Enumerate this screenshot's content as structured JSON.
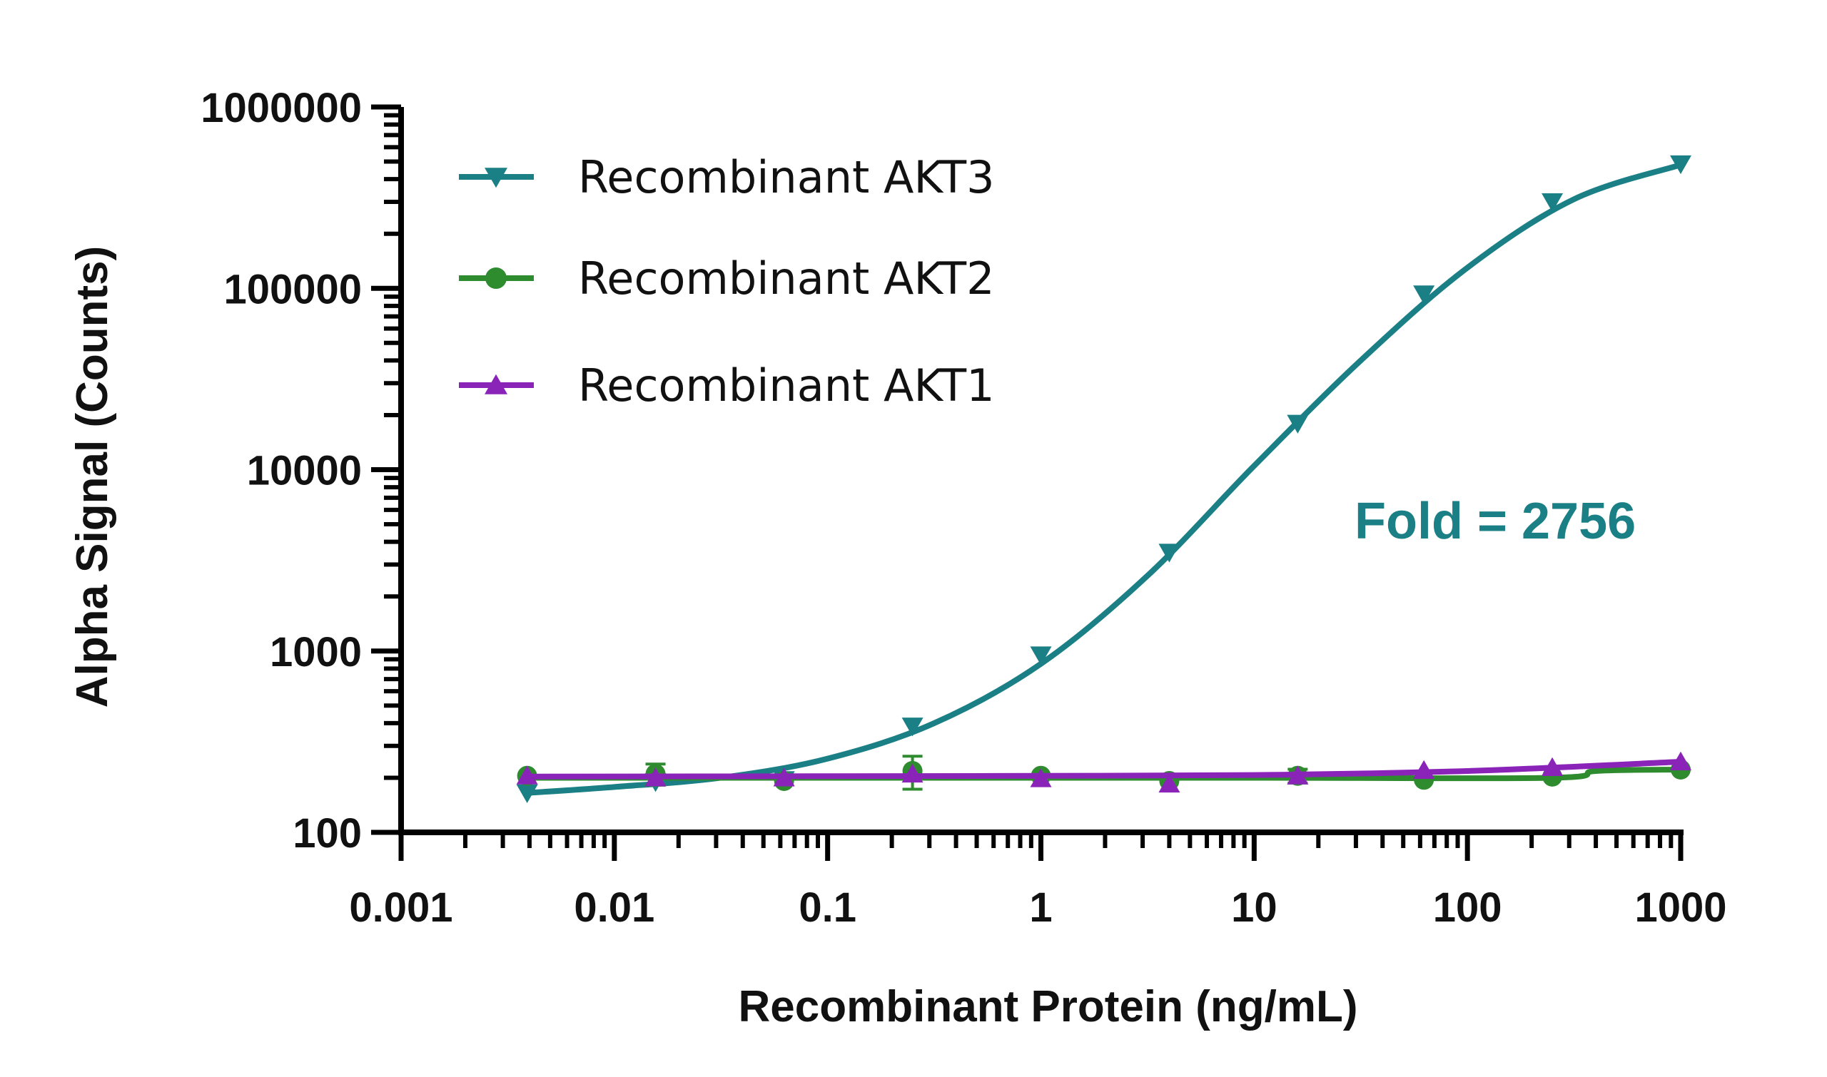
{
  "chart_data": {
    "type": "line",
    "title": "",
    "xlabel": "Recombinant Protein (ng/mL)",
    "ylabel": "Alpha Signal (Counts)",
    "xscale": "log",
    "yscale": "log",
    "xlim": [
      0.001,
      1000
    ],
    "ylim": [
      100,
      1000000
    ],
    "xticks": [
      0.001,
      0.01,
      0.1,
      1,
      10,
      100,
      1000
    ],
    "xtick_labels": [
      "0.001",
      "0.01",
      "0.1",
      "1",
      "10",
      "100",
      "1000"
    ],
    "yticks": [
      100,
      1000,
      10000,
      100000,
      1000000
    ],
    "ytick_labels": [
      "100",
      "1000",
      "10000",
      "100000",
      "1000000"
    ],
    "legend_position": "top-left",
    "annotation": {
      "text": "Fold = 2756",
      "color": "#1b7f86"
    },
    "series": [
      {
        "name": "Recombinant AKT3",
        "color": "#1b7f86",
        "marker": "triangle-down",
        "x": [
          0.0039,
          0.0156,
          0.0625,
          0.25,
          1,
          4,
          16,
          62.5,
          250,
          1000
        ],
        "y": [
          165,
          190,
          195,
          385,
          950,
          3500,
          18000,
          93000,
          300000,
          485000
        ],
        "fit": [
          [
            0.0039,
            165
          ],
          [
            0.01,
            178
          ],
          [
            0.0316,
            200
          ],
          [
            0.1,
            255
          ],
          [
            0.316,
            400
          ],
          [
            1,
            850
          ],
          [
            3.16,
            2600
          ],
          [
            10,
            10500
          ],
          [
            31.6,
            40000
          ],
          [
            100,
            130000
          ],
          [
            316,
            310000
          ],
          [
            1000,
            480000
          ]
        ]
      },
      {
        "name": "Recombinant AKT2",
        "color": "#2e8b2e",
        "marker": "circle",
        "x": [
          0.0039,
          0.0156,
          0.0625,
          0.25,
          1,
          4,
          16,
          62.5,
          250,
          1000
        ],
        "y": [
          205,
          210,
          192,
          218,
          205,
          192,
          205,
          195,
          203,
          222
        ],
        "yerr": [
          0,
          28,
          0,
          45,
          0,
          0,
          18,
          0,
          0,
          0
        ],
        "fit": [
          [
            0.0039,
            200
          ],
          [
            0.1,
            200
          ],
          [
            10,
            200
          ],
          [
            250,
            200
          ],
          [
            400,
            218
          ],
          [
            1000,
            222
          ]
        ]
      },
      {
        "name": "Recombinant AKT1",
        "color": "#8a24b8",
        "marker": "triangle-up",
        "x": [
          0.0039,
          0.0156,
          0.0625,
          0.25,
          1,
          4,
          16,
          62.5,
          250,
          1000
        ],
        "y": [
          205,
          200,
          200,
          210,
          198,
          185,
          205,
          220,
          228,
          245
        ],
        "fit": [
          [
            0.0039,
            203
          ],
          [
            0.1,
            204
          ],
          [
            1,
            205
          ],
          [
            10,
            207
          ],
          [
            100,
            218
          ],
          [
            1000,
            245
          ]
        ]
      }
    ]
  }
}
